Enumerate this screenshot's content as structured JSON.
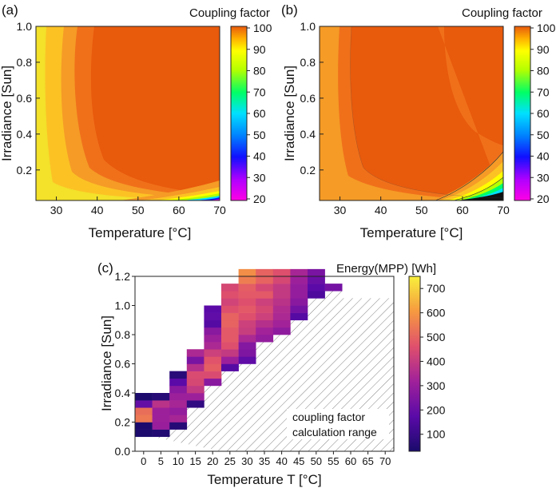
{
  "panels": [
    {
      "label": "(a)",
      "colorbar_title": "Coupling factor",
      "xlabel": "Temperature [°C]",
      "ylabel": "Irradiance [Sun]",
      "x_ticks": [
        "30",
        "40",
        "50",
        "60",
        "70"
      ],
      "y_ticks": [
        "0.2",
        "0.4",
        "0.6",
        "0.8",
        "1.0"
      ],
      "colorbar_ticks": [
        "20",
        "30",
        "40",
        "50",
        "60",
        "70",
        "80",
        "90",
        "100"
      ]
    },
    {
      "label": "(b)",
      "colorbar_title": "Coupling factor",
      "xlabel": "Temperature [°C]",
      "ylabel": "Irradiance [Sun]",
      "x_ticks": [
        "30",
        "40",
        "50",
        "60",
        "70"
      ],
      "y_ticks": [
        "0.2",
        "0.4",
        "0.6",
        "0.8",
        "1.0"
      ],
      "colorbar_ticks": [
        "20",
        "30",
        "40",
        "50",
        "60",
        "70",
        "80",
        "90",
        "100"
      ]
    },
    {
      "label": "(c)",
      "colorbar_title": "Energy(MPP) [Wh]",
      "xlabel": "Temperature T [°C]",
      "ylabel": "Irradiance [Sun]",
      "x_ticks": [
        "0",
        "5",
        "10",
        "15",
        "20",
        "25",
        "30",
        "35",
        "40",
        "45",
        "50",
        "55",
        "60",
        "65",
        "70"
      ],
      "y_ticks": [
        "0.0",
        "0.2",
        "0.4",
        "0.6",
        "0.8",
        "1.0",
        "1.2"
      ],
      "colorbar_ticks": [
        "100",
        "200",
        "300",
        "400",
        "500",
        "600",
        "700"
      ],
      "annotation": [
        "coupling factor",
        "calculation range"
      ]
    }
  ],
  "chart_data": [
    {
      "type": "heatmap",
      "subtype": "filled-contour",
      "xlabel": "Temperature [°C]",
      "ylabel": "Irradiance [Sun]",
      "colorbar_label": "Coupling factor",
      "xlim": [
        25,
        70
      ],
      "ylim": [
        0.03,
        1.0
      ],
      "zlim": [
        20,
        100
      ],
      "colormap": [
        "#ff00e6",
        "#8a00ff",
        "#0a0aff",
        "#0080ff",
        "#00e0ff",
        "#00ff66",
        "#b4ff00",
        "#ffff00",
        "#ffc800",
        "#ff8c00",
        "#e85a0c"
      ],
      "contours": [
        {
          "level": 97.5,
          "points": [
            [
              25,
              0.97
            ],
            [
              30,
              1.0
            ]
          ]
        },
        {
          "level": 95,
          "points": [
            [
              28,
              1.0
            ],
            [
              27,
              0.6
            ],
            [
              28,
              0.3
            ],
            [
              31,
              0.1
            ],
            [
              40,
              0.04
            ],
            [
              70,
              0.03
            ]
          ]
        },
        {
          "level": 96.5,
          "points": [
            [
              34,
              1.0
            ],
            [
              33,
              0.6
            ],
            [
              34,
              0.35
            ],
            [
              38,
              0.2
            ],
            [
              45,
              0.12
            ],
            [
              55,
              0.07
            ],
            [
              70,
              0.055
            ]
          ]
        },
        {
          "level": 98,
          "points": [
            [
              38,
              1.0
            ],
            [
              37,
              0.6
            ],
            [
              39,
              0.4
            ],
            [
              44,
              0.3
            ],
            [
              52,
              0.2
            ],
            [
              62,
              0.12
            ],
            [
              70,
              0.09
            ]
          ]
        },
        {
          "level": 99,
          "points": [
            [
              45,
              1.0
            ],
            [
              44,
              0.8
            ],
            [
              46,
              0.6
            ],
            [
              50,
              0.5
            ],
            [
              56,
              0.4
            ],
            [
              62,
              0.32
            ],
            [
              70,
              0.26
            ]
          ]
        }
      ]
    },
    {
      "type": "heatmap",
      "subtype": "filled-contour",
      "xlabel": "Temperature [°C]",
      "ylabel": "Irradiance [Sun]",
      "colorbar_label": "Coupling factor",
      "xlim": [
        25,
        70
      ],
      "ylim": [
        0.03,
        1.0
      ],
      "zlim": [
        20,
        100
      ],
      "contours": [
        {
          "level": 97,
          "points": [
            [
              30,
              1.0
            ],
            [
              29,
              0.6
            ],
            [
              30,
              0.3
            ],
            [
              33,
              0.12
            ],
            [
              40,
              0.05
            ],
            [
              55,
              0.03
            ],
            [
              70,
              0.03
            ]
          ]
        },
        {
          "level": 98.5,
          "points": [
            [
              35,
              1.0
            ],
            [
              34,
              0.6
            ],
            [
              36,
              0.35
            ],
            [
              40,
              0.2
            ],
            [
              48,
              0.12
            ],
            [
              58,
              0.08
            ],
            [
              70,
              0.06
            ]
          ]
        },
        {
          "level": 99.5,
          "points": [
            [
              55,
              1.0
            ],
            [
              55,
              0.7
            ],
            [
              57,
              0.5
            ],
            [
              62,
              0.4
            ],
            [
              70,
              0.35
            ]
          ]
        },
        {
          "level": 90,
          "points": [
            [
              57,
              0.35
            ],
            [
              62,
              0.28
            ],
            [
              66,
              0.25
            ],
            [
              70,
              0.22
            ]
          ]
        },
        {
          "level": 80,
          "points": [
            [
              62,
              0.22
            ],
            [
              66,
              0.18
            ],
            [
              70,
              0.15
            ]
          ]
        },
        {
          "level": 60,
          "points": [
            [
              62,
              0.1
            ],
            [
              66,
              0.1
            ],
            [
              70,
              0.1
            ]
          ]
        },
        {
          "level": 30,
          "points": [
            [
              60,
              0.04
            ],
            [
              65,
              0.05
            ],
            [
              70,
              0.06
            ]
          ]
        }
      ]
    },
    {
      "type": "heatmap",
      "xlabel": "Temperature T [°C]",
      "ylabel": "Irradiance [Sun]",
      "colorbar_label": "Energy(MPP) [Wh]",
      "x_bins": [
        -2.5,
        72.5
      ],
      "y_bins": [
        0.0,
        1.2
      ],
      "x_step": 5,
      "y_step": 0.05,
      "zlim": [
        0,
        750
      ],
      "x_centers": [
        0,
        5,
        10,
        15,
        20,
        25,
        30,
        35,
        40,
        45,
        50,
        55
      ],
      "columns_y0": [
        0.1,
        0.1,
        0.15,
        0.3,
        0.45,
        0.55,
        0.6,
        0.75,
        0.8,
        0.9,
        1.05,
        1.1
      ],
      "columns_y1": [
        0.35,
        0.4,
        0.5,
        0.65,
        0.95,
        1.1,
        1.2,
        1.2,
        1.2,
        1.2,
        1.2,
        1.1
      ],
      "values": [
        [
          35,
          35,
          520,
          500,
          190,
          35
        ],
        [
          45,
          290,
          300,
          300,
          360,
          55
        ],
        [
          55,
          320,
          280,
          320,
          300,
          260,
          170,
          60
        ],
        [
          80,
          300,
          380,
          420,
          430,
          350,
          230,
          330,
          240,
          190,
          120,
          60
        ],
        [
          260,
          430,
          470,
          450,
          400,
          330,
          300,
          260,
          160,
          180,
          170,
          310,
          420,
          220,
          90,
          100
        ],
        [
          160,
          300,
          380,
          440,
          460,
          460,
          480,
          480,
          440,
          410,
          440,
          420,
          440,
          360,
          250,
          250,
          250,
          140,
          120,
          60
        ],
        [
          180,
          240,
          250,
          330,
          390,
          400,
          440,
          460,
          440,
          460,
          470,
          530,
          560,
          620,
          600,
          540,
          500,
          450,
          470,
          330,
          280,
          240,
          250,
          230
        ],
        [
          280,
          310,
          350,
          400,
          420,
          400,
          460,
          420,
          480,
          480,
          500,
          540,
          560,
          520,
          480,
          460,
          440,
          380,
          380,
          330,
          260,
          250,
          280,
          240
        ],
        [
          270,
          310,
          330,
          340,
          360,
          380,
          380,
          420,
          440,
          440,
          480,
          500,
          520,
          580,
          600,
          690,
          720,
          670,
          460,
          350,
          310,
          290,
          250,
          270
        ],
        [
          160,
          220,
          260,
          280,
          280,
          300,
          320,
          340,
          360,
          380,
          420,
          470,
          520,
          560,
          560,
          520,
          520,
          470,
          440,
          390,
          330,
          330,
          310,
          280
        ],
        [
          140,
          170,
          200,
          230,
          240,
          260,
          280,
          300,
          330,
          350,
          380,
          410,
          450,
          470,
          470,
          430,
          430,
          400,
          380,
          340,
          330,
          270,
          260,
          230
        ],
        [
          220,
          240,
          260,
          280,
          300,
          310,
          330,
          340,
          380,
          410,
          450,
          480,
          520
        ]
      ],
      "annotation": "coupling factor calculation range",
      "hatch_region": "outside computed range"
    }
  ]
}
